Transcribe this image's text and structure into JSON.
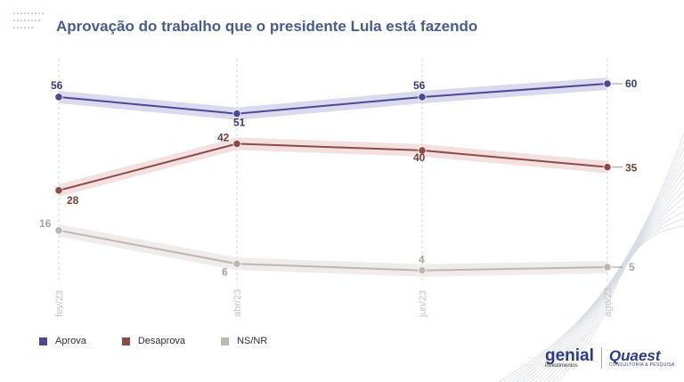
{
  "title": "Aprovação do trabalho que o presidente Lula está fazendo",
  "chart_data": {
    "type": "line",
    "title": "Aprovação do trabalho que o presidente Lula está fazendo",
    "categories": [
      "fev/23",
      "abr/23",
      "jun/23",
      "ago/23"
    ],
    "series": [
      {
        "name": "Aprova",
        "values": [
          56,
          51,
          56,
          60
        ],
        "color": "#4b4895",
        "band": "#d4d2ea"
      },
      {
        "name": "Desaprova",
        "values": [
          28,
          42,
          40,
          35
        ],
        "color": "#8e4a47",
        "band": "#f0dcdb"
      },
      {
        "name": "NS/NR",
        "values": [
          16,
          6,
          4,
          5
        ],
        "color": "#bdb7b2",
        "band": "#ece9e7"
      }
    ],
    "ylim": [
      0,
      65
    ],
    "grid": "vertical-dashed",
    "legend": "bottom-left"
  },
  "legend": [
    {
      "label": "Aprova",
      "color": "#4b4895"
    },
    {
      "label": "Desaprova",
      "color": "#8e4a47"
    },
    {
      "label": "NS/NR",
      "color": "#bdb7b2"
    }
  ],
  "logos": {
    "genial": "genial",
    "genial_sub": "investimentos",
    "quaest": "Quaest",
    "quaest_sub": "CONSULTORIA & PESQUISA"
  }
}
